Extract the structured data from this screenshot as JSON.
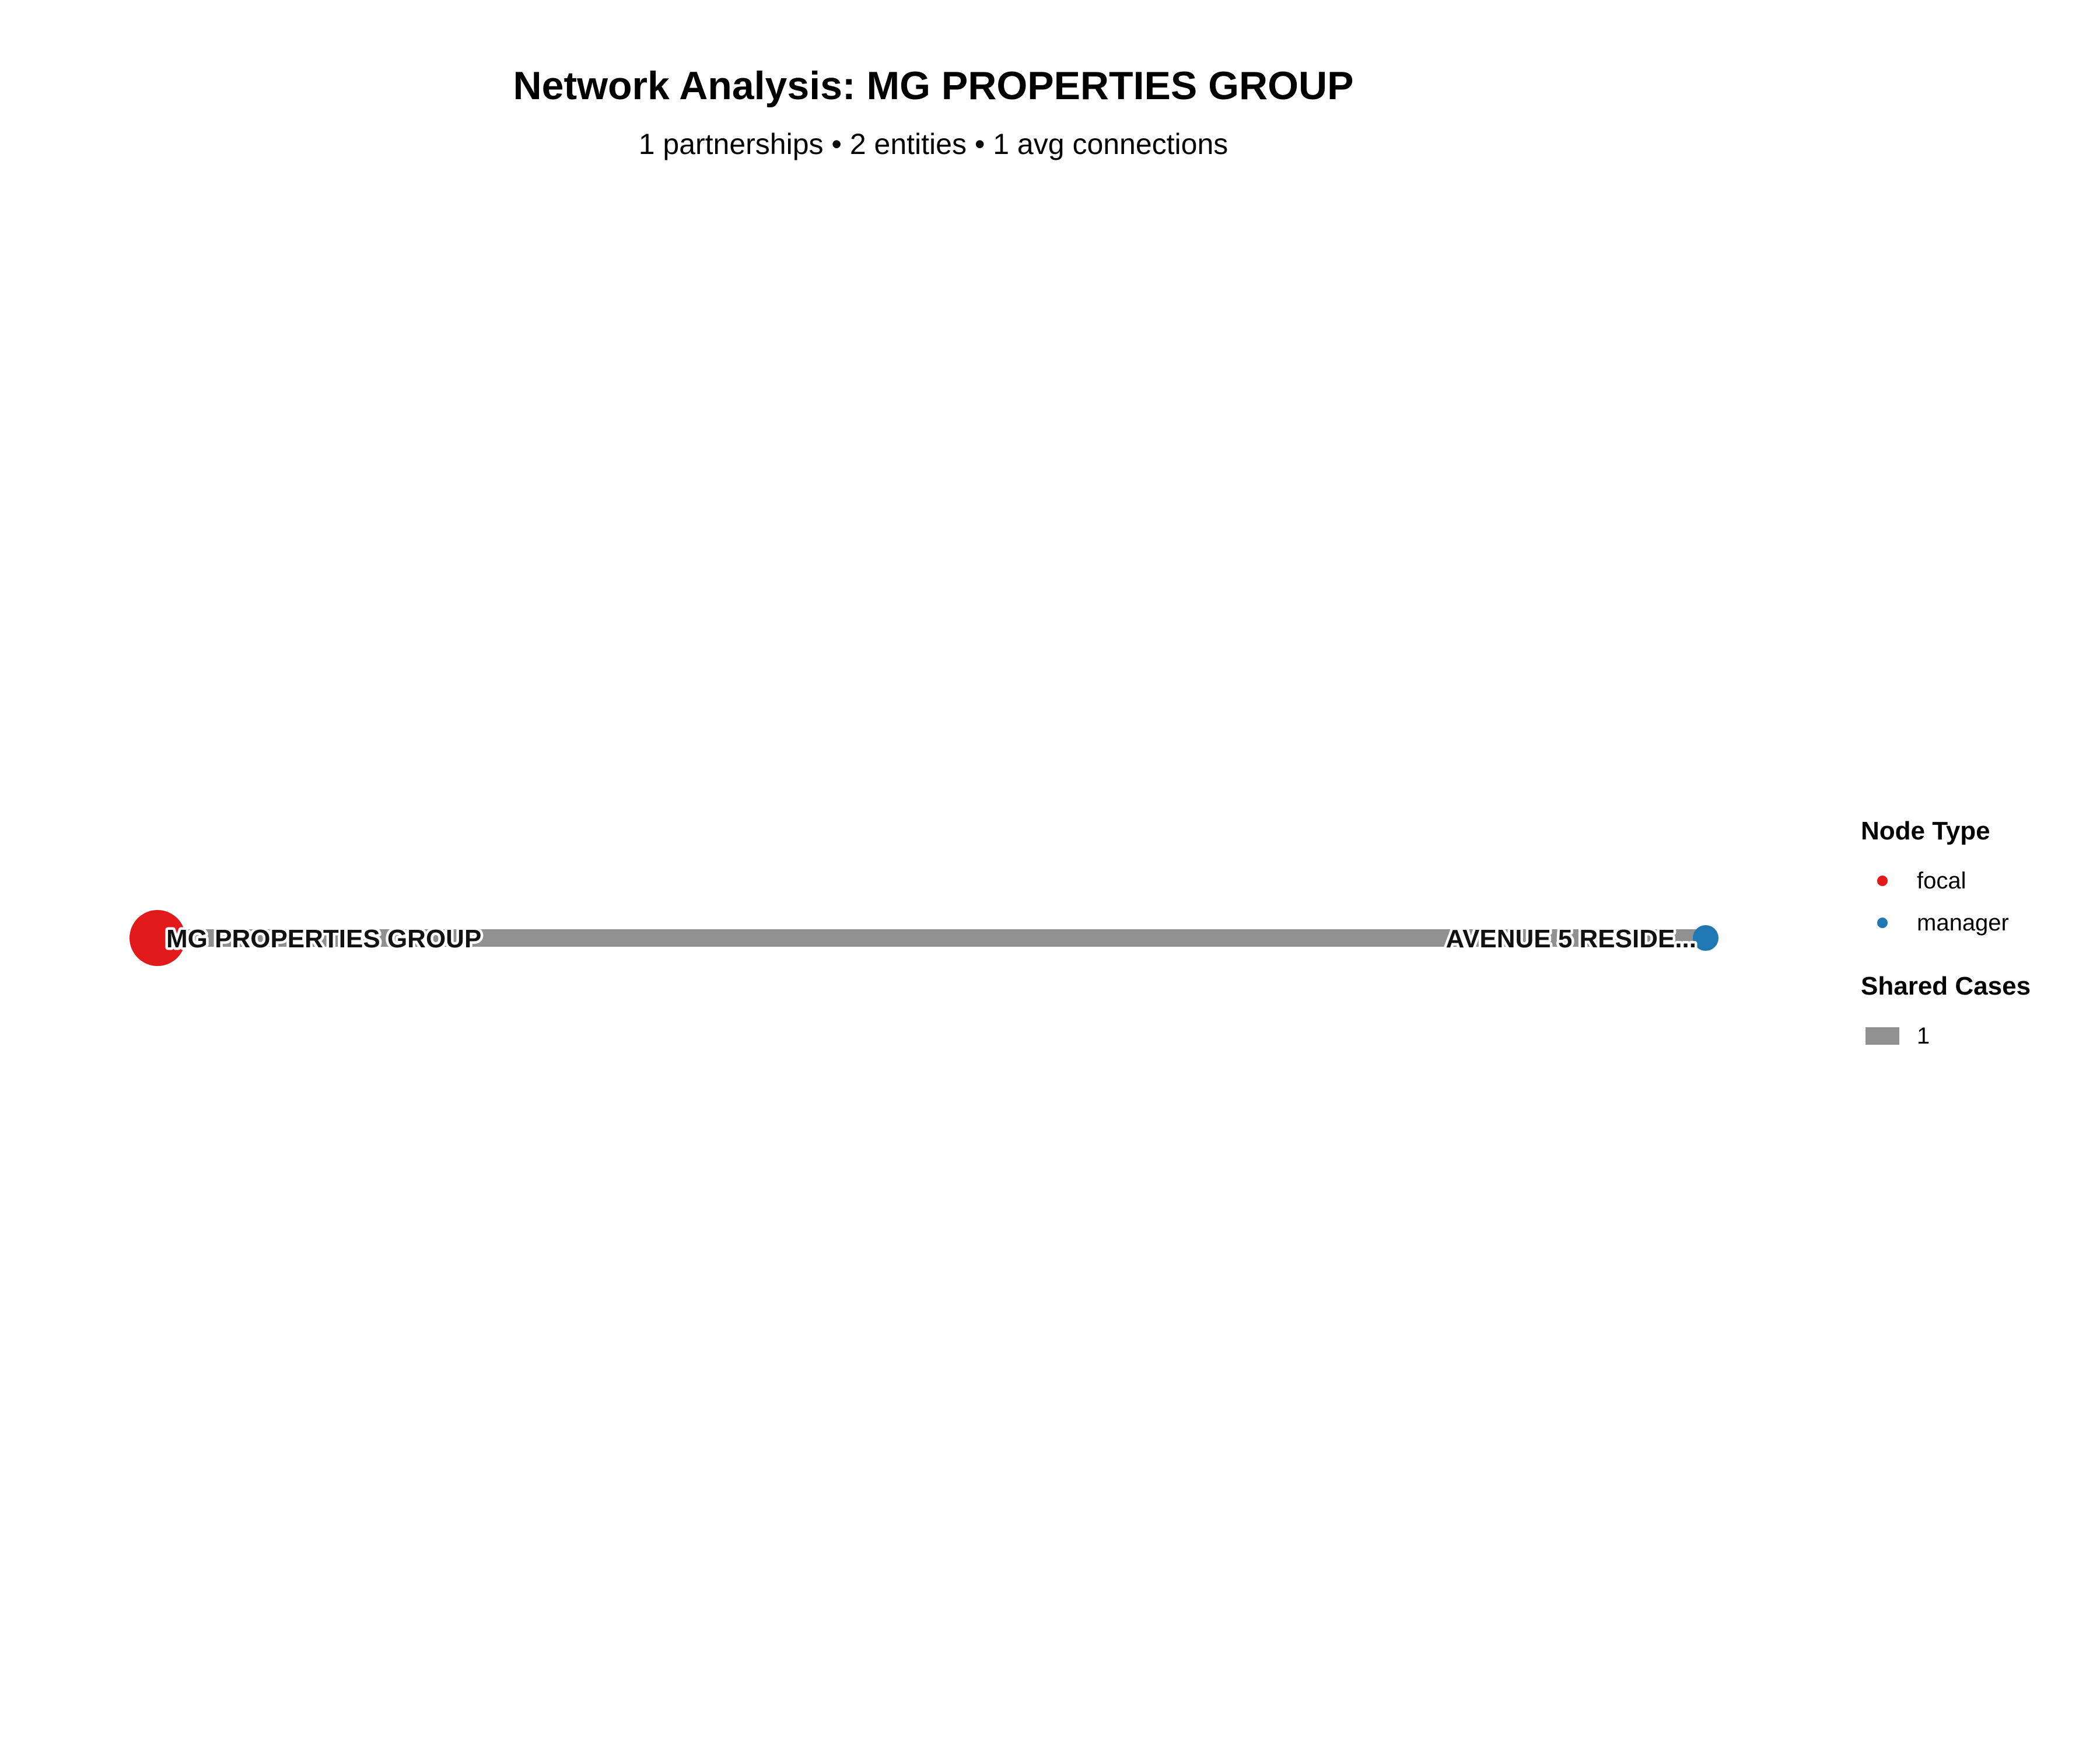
{
  "title": "Network Analysis: MG PROPERTIES GROUP",
  "subtitle": "1 partnerships • 2 entities • 1 avg connections",
  "network": {
    "nodes": [
      {
        "id": "mg",
        "label": "MG PROPERTIES GROUP",
        "type": "focal",
        "color": "#e31a1c"
      },
      {
        "id": "av5",
        "label": "AVENUE 5 RESIDE...",
        "type": "manager",
        "color": "#1f78b4"
      }
    ],
    "edges": [
      {
        "source": "mg",
        "target": "av5",
        "shared_cases": 1,
        "color": "#919191"
      }
    ]
  },
  "legend": {
    "node_type_title": "Node Type",
    "node_types": [
      {
        "label": "focal",
        "color": "#e31a1c"
      },
      {
        "label": "manager",
        "color": "#1f78b4"
      }
    ],
    "shared_cases_title": "Shared Cases",
    "shared_cases": [
      {
        "label": "1",
        "color": "#919191"
      }
    ]
  }
}
